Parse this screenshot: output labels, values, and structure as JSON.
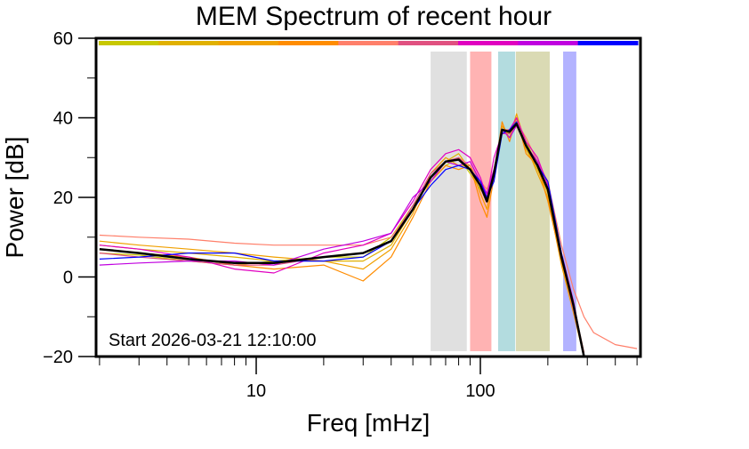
{
  "chart_data": {
    "type": "line",
    "title": "MEM Spectrum of recent hour",
    "xlabel": "Freq [mHz]",
    "ylabel": "Power [dB]",
    "xscale": "log",
    "xlim": [
      1.93,
      518
    ],
    "ylim": [
      -20,
      60
    ],
    "xticks": [
      {
        "v": 10,
        "label": "10"
      },
      {
        "v": 100,
        "label": "100"
      }
    ],
    "yticks": [
      {
        "v": -20,
        "label": "−20"
      },
      {
        "v": 0,
        "label": "0"
      },
      {
        "v": 20,
        "label": "20"
      },
      {
        "v": 40,
        "label": "40"
      },
      {
        "v": 60,
        "label": "60"
      }
    ],
    "annotation": "Start 2026-03-21 12:10:00",
    "bands": [
      {
        "from": 60,
        "to": 87,
        "color": "#e0e0e0"
      },
      {
        "from": 90,
        "to": 112,
        "color": "#ffb3b3"
      },
      {
        "from": 120,
        "to": 143,
        "color": "#b3dcdf"
      },
      {
        "from": 144,
        "to": 204,
        "color": "#dadab4"
      },
      {
        "from": 234,
        "to": 268,
        "color": "#b3b3ff"
      }
    ],
    "x": [
      2,
      3,
      5,
      8,
      12,
      20,
      30,
      40,
      50,
      60,
      70,
      80,
      90,
      100,
      107,
      115,
      125,
      135,
      145,
      160,
      180,
      200,
      230,
      260,
      290,
      320,
      400,
      500
    ],
    "series": [
      {
        "color": "#c8c800",
        "values": [
          6,
          5.5,
          4,
          3,
          4,
          5,
          5,
          10,
          18,
          24,
          28,
          30,
          26,
          22,
          20,
          27,
          36,
          37,
          39,
          34,
          28,
          22,
          5,
          -8,
          -20,
          null,
          null,
          null
        ]
      },
      {
        "color": "#e0b000",
        "values": [
          8,
          7,
          6,
          5,
          4,
          4,
          4,
          8,
          17,
          25,
          29,
          31,
          27,
          23,
          21,
          26,
          37,
          36,
          40,
          32,
          27,
          21,
          4,
          -7,
          -19,
          null,
          null,
          null
        ]
      },
      {
        "color": "#f0a000",
        "values": [
          9,
          8,
          7,
          6,
          5,
          4,
          2,
          7,
          16,
          26,
          30,
          28,
          28,
          21,
          17,
          27,
          38,
          35,
          41,
          33,
          26,
          20,
          3,
          -9,
          -21,
          null,
          null,
          null
        ]
      },
      {
        "color": "#ff8c00",
        "values": [
          7,
          6,
          5,
          3,
          2,
          3,
          -1,
          5,
          15,
          24,
          28,
          27,
          28,
          19,
          15,
          25,
          39,
          34,
          40,
          31,
          28,
          19,
          4,
          -8,
          -20,
          null,
          null,
          null
        ]
      },
      {
        "color": "#ff7f6a",
        "values": [
          10.5,
          10,
          9.5,
          8.5,
          8,
          8,
          8,
          10,
          17,
          25,
          29,
          30,
          28,
          24,
          22,
          27,
          37,
          37,
          39,
          35,
          29,
          24,
          8,
          -3,
          -10,
          -14,
          -17,
          -18
        ]
      },
      {
        "color": "#e05080",
        "values": [
          6,
          5,
          4,
          3,
          3,
          5,
          6,
          9,
          18,
          26,
          29,
          30,
          27,
          23,
          21,
          26,
          36,
          36,
          38,
          33,
          29,
          22,
          5,
          -7,
          -19,
          null,
          null,
          null
        ]
      },
      {
        "color": "#e000c0",
        "values": [
          8,
          7,
          5,
          2,
          1,
          6,
          8,
          11,
          19,
          27,
          31,
          32,
          30,
          25,
          20,
          30,
          36,
          37,
          40,
          34,
          30,
          23,
          6,
          -6,
          -20,
          null,
          null,
          null
        ]
      },
      {
        "color": "#c000e0",
        "values": [
          3,
          3.5,
          4,
          4,
          3,
          7,
          9,
          11,
          20,
          24,
          29,
          28,
          29,
          24,
          21,
          27,
          37,
          35,
          38,
          33,
          29,
          22,
          5,
          -8,
          -21,
          null,
          null,
          null
        ]
      },
      {
        "color": "#0000ff",
        "values": [
          4.5,
          5,
          6,
          6,
          4,
          4,
          5,
          9,
          17,
          23,
          27,
          28,
          27,
          24,
          20,
          24,
          36,
          37,
          39,
          33,
          28,
          24,
          6,
          -7,
          -21,
          null,
          null,
          null
        ]
      },
      {
        "color": "#000000",
        "values": [
          7,
          6,
          4.5,
          3.5,
          3.5,
          5,
          6,
          9,
          17,
          25,
          29,
          29.5,
          27,
          23,
          19,
          26,
          37,
          36.5,
          38.5,
          33,
          28,
          22,
          5,
          -7,
          -20,
          null,
          null,
          null
        ]
      }
    ]
  }
}
